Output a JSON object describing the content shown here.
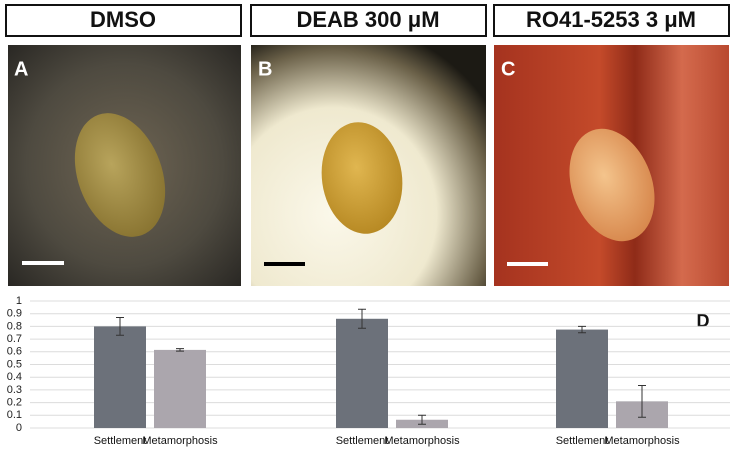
{
  "panels": [
    {
      "header": "DMSO",
      "letter": "A"
    },
    {
      "header": "DEAB 300 μM",
      "letter": "B"
    },
    {
      "header": "RO41-5253 3 μM",
      "letter": "C"
    }
  ],
  "chart_data": {
    "type": "bar",
    "annotation": "D",
    "categories": [
      null,
      null,
      null
    ],
    "series": [
      {
        "name": "Settlement",
        "color": "#6c717a",
        "values": [
          0.8,
          0.86,
          0.775
        ],
        "errors": [
          0.07,
          0.075,
          0.025
        ]
      },
      {
        "name": "Metamorphosis",
        "color": "#aba6ad",
        "values": [
          0.615,
          0.065,
          0.21
        ],
        "errors": [
          0.01,
          0.035,
          0.125
        ]
      }
    ],
    "ylim": [
      0,
      1
    ],
    "yticks": [
      0,
      0.1,
      0.2,
      0.3,
      0.4,
      0.5,
      0.6,
      0.7,
      0.8,
      0.9,
      1
    ],
    "grid": true
  }
}
